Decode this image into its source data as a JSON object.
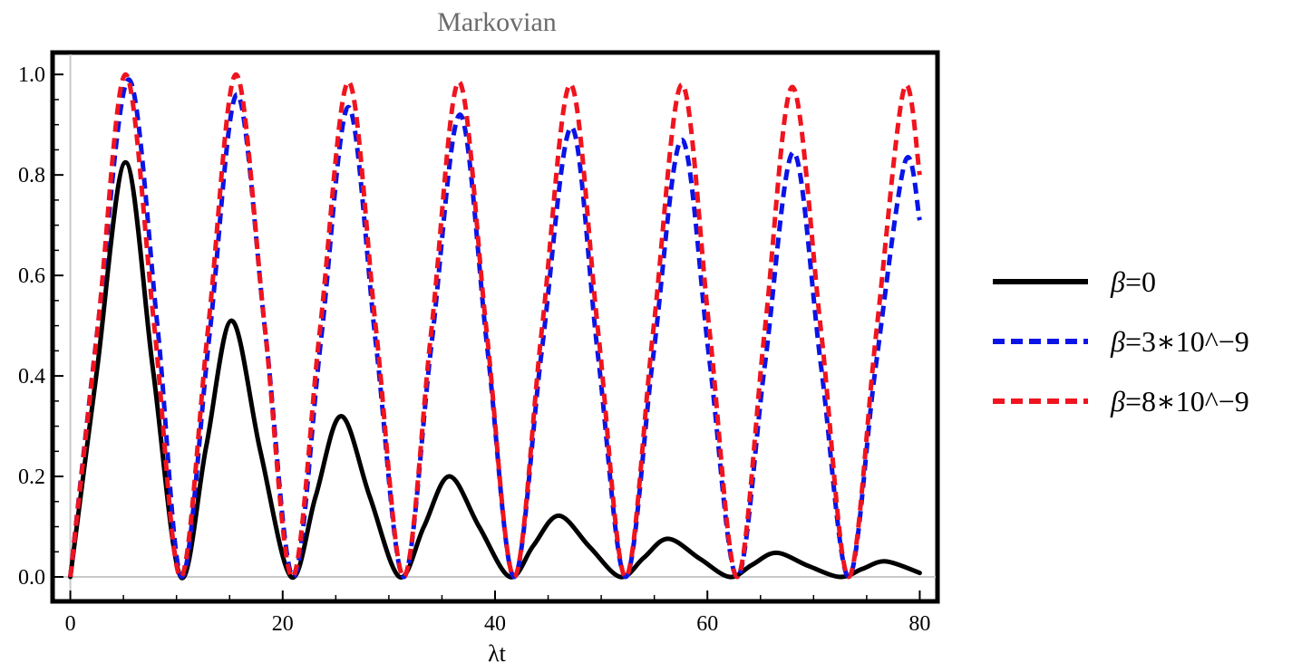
{
  "chart_data": {
    "type": "line",
    "title": "Markovian",
    "xlabel": "λt",
    "ylabel": "",
    "xlim": [
      -1.5,
      81.5
    ],
    "ylim": [
      -0.045,
      1.04
    ],
    "x_ticks": [
      0,
      20,
      40,
      60,
      80
    ],
    "x_tick_labels": [
      "0",
      "20",
      "40",
      "60",
      "80"
    ],
    "y_ticks": [
      0.0,
      0.2,
      0.4,
      0.6,
      0.8,
      1.0
    ],
    "y_tick_labels": [
      "0.0",
      "0.2",
      "0.4",
      "0.6",
      "0.8",
      "1.0"
    ],
    "grid": false,
    "legend_position": "right",
    "series": [
      {
        "name": "β=0",
        "legend_symbol": "β",
        "legend_rest": "=0",
        "color": "#000000",
        "style": "solid",
        "points": [
          [
            0,
            0
          ],
          [
            2.5,
            0.41
          ],
          [
            5.2,
            0.825
          ],
          [
            7.8,
            0.41
          ],
          [
            10.4,
            0
          ],
          [
            12.8,
            0.26
          ],
          [
            15.2,
            0.51
          ],
          [
            17.9,
            0.25
          ],
          [
            20.8,
            0
          ],
          [
            23.1,
            0.16
          ],
          [
            25.5,
            0.32
          ],
          [
            28.2,
            0.16
          ],
          [
            31.0,
            0
          ],
          [
            33.3,
            0.1
          ],
          [
            35.7,
            0.2
          ],
          [
            38.5,
            0.1
          ],
          [
            41.4,
            0
          ],
          [
            43.6,
            0.062
          ],
          [
            46.0,
            0.122
          ],
          [
            48.9,
            0.06
          ],
          [
            51.8,
            0
          ],
          [
            54.0,
            0.038
          ],
          [
            56.3,
            0.076
          ],
          [
            59.3,
            0.036
          ],
          [
            62.1,
            0
          ],
          [
            64.2,
            0.024
          ],
          [
            66.5,
            0.048
          ],
          [
            69.5,
            0.022
          ],
          [
            72.5,
            0
          ],
          [
            74.6,
            0.016
          ],
          [
            76.8,
            0.031
          ],
          [
            80,
            0.008
          ]
        ]
      },
      {
        "name": "β=3*10^-9",
        "legend_symbol": "β",
        "legend_rest": "=3∗10^−9",
        "color": "#0a14e6",
        "style": "dashed",
        "points": [
          [
            0,
            0
          ],
          [
            2.6,
            0.5
          ],
          [
            5.5,
            0.99
          ],
          [
            8.2,
            0.5
          ],
          [
            10.5,
            0
          ],
          [
            13.1,
            0.48
          ],
          [
            15.7,
            0.96
          ],
          [
            18.4,
            0.48
          ],
          [
            21.0,
            0
          ],
          [
            23.6,
            0.47
          ],
          [
            26.2,
            0.935
          ],
          [
            28.8,
            0.46
          ],
          [
            31.4,
            0
          ],
          [
            34.0,
            0.46
          ],
          [
            36.7,
            0.92
          ],
          [
            39.3,
            0.45
          ],
          [
            41.8,
            0
          ],
          [
            44.4,
            0.45
          ],
          [
            47.2,
            0.895
          ],
          [
            49.7,
            0.44
          ],
          [
            52.3,
            0
          ],
          [
            54.9,
            0.44
          ],
          [
            57.6,
            0.87
          ],
          [
            60.2,
            0.43
          ],
          [
            62.8,
            0
          ],
          [
            65.4,
            0.42
          ],
          [
            68.1,
            0.845
          ],
          [
            70.7,
            0.42
          ],
          [
            73.3,
            0
          ],
          [
            75.8,
            0.41
          ],
          [
            78.6,
            0.825
          ],
          [
            80,
            0.71
          ]
        ]
      },
      {
        "name": "β=8*10^-9",
        "legend_symbol": "β",
        "legend_rest": "=8∗10^−9",
        "color": "#f0141e",
        "style": "dashed",
        "points": [
          [
            0,
            0
          ],
          [
            2.6,
            0.5
          ],
          [
            5.2,
            1.0
          ],
          [
            7.9,
            0.5
          ],
          [
            10.4,
            0
          ],
          [
            13.0,
            0.5
          ],
          [
            15.6,
            1.0
          ],
          [
            18.3,
            0.5
          ],
          [
            20.9,
            0
          ],
          [
            23.5,
            0.49
          ],
          [
            26.2,
            0.985
          ],
          [
            28.8,
            0.49
          ],
          [
            31.4,
            0
          ],
          [
            34.0,
            0.49
          ],
          [
            36.6,
            0.985
          ],
          [
            39.2,
            0.49
          ],
          [
            41.8,
            0
          ],
          [
            44.4,
            0.49
          ],
          [
            47.1,
            0.98
          ],
          [
            49.7,
            0.49
          ],
          [
            52.3,
            0
          ],
          [
            54.9,
            0.49
          ],
          [
            57.6,
            0.98
          ],
          [
            60.2,
            0.49
          ],
          [
            62.8,
            0
          ],
          [
            65.4,
            0.49
          ],
          [
            68.0,
            0.975
          ],
          [
            70.7,
            0.49
          ],
          [
            73.3,
            0
          ],
          [
            75.9,
            0.485
          ],
          [
            78.5,
            0.97
          ],
          [
            80,
            0.8
          ]
        ]
      }
    ]
  }
}
